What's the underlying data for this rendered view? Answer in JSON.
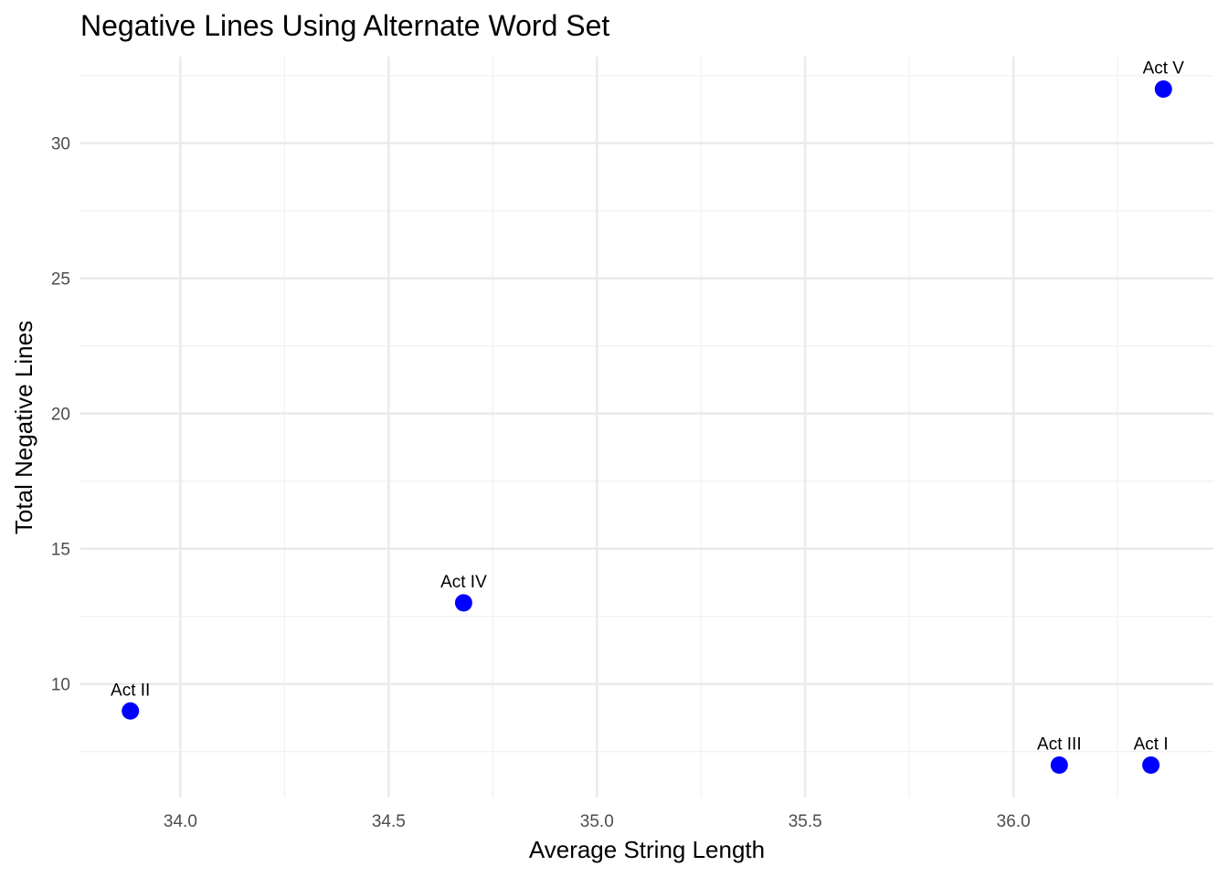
{
  "chart_data": {
    "type": "scatter",
    "title": "Negative Lines Using Alternate Word Set",
    "xlabel": "Average String Length",
    "ylabel": "Total Negative Lines",
    "xlim": [
      33.76,
      36.48
    ],
    "ylim": [
      5.8,
      33.2
    ],
    "x_ticks": [
      34.0,
      34.5,
      35.0,
      35.5,
      36.0
    ],
    "x_tick_labels": [
      "34.0",
      "34.5",
      "35.0",
      "35.5",
      "36.0"
    ],
    "x_minor_ticks": [
      34.25,
      34.75,
      35.25,
      35.75,
      36.25
    ],
    "y_ticks": [
      10,
      15,
      20,
      25,
      30
    ],
    "y_tick_labels": [
      "10",
      "15",
      "20",
      "25",
      "30"
    ],
    "y_minor_ticks": [
      7.5,
      12.5,
      17.5,
      22.5,
      27.5,
      32.5
    ],
    "grid": true,
    "point_color": "#0000ff",
    "grid_major_color": "#ebebeb",
    "grid_minor_color": "#f2f2f2",
    "points": [
      {
        "label": "Act I",
        "x": 36.33,
        "y": 7
      },
      {
        "label": "Act II",
        "x": 33.88,
        "y": 9
      },
      {
        "label": "Act III",
        "x": 36.11,
        "y": 7
      },
      {
        "label": "Act IV",
        "x": 34.68,
        "y": 13
      },
      {
        "label": "Act V",
        "x": 36.36,
        "y": 32
      }
    ]
  }
}
